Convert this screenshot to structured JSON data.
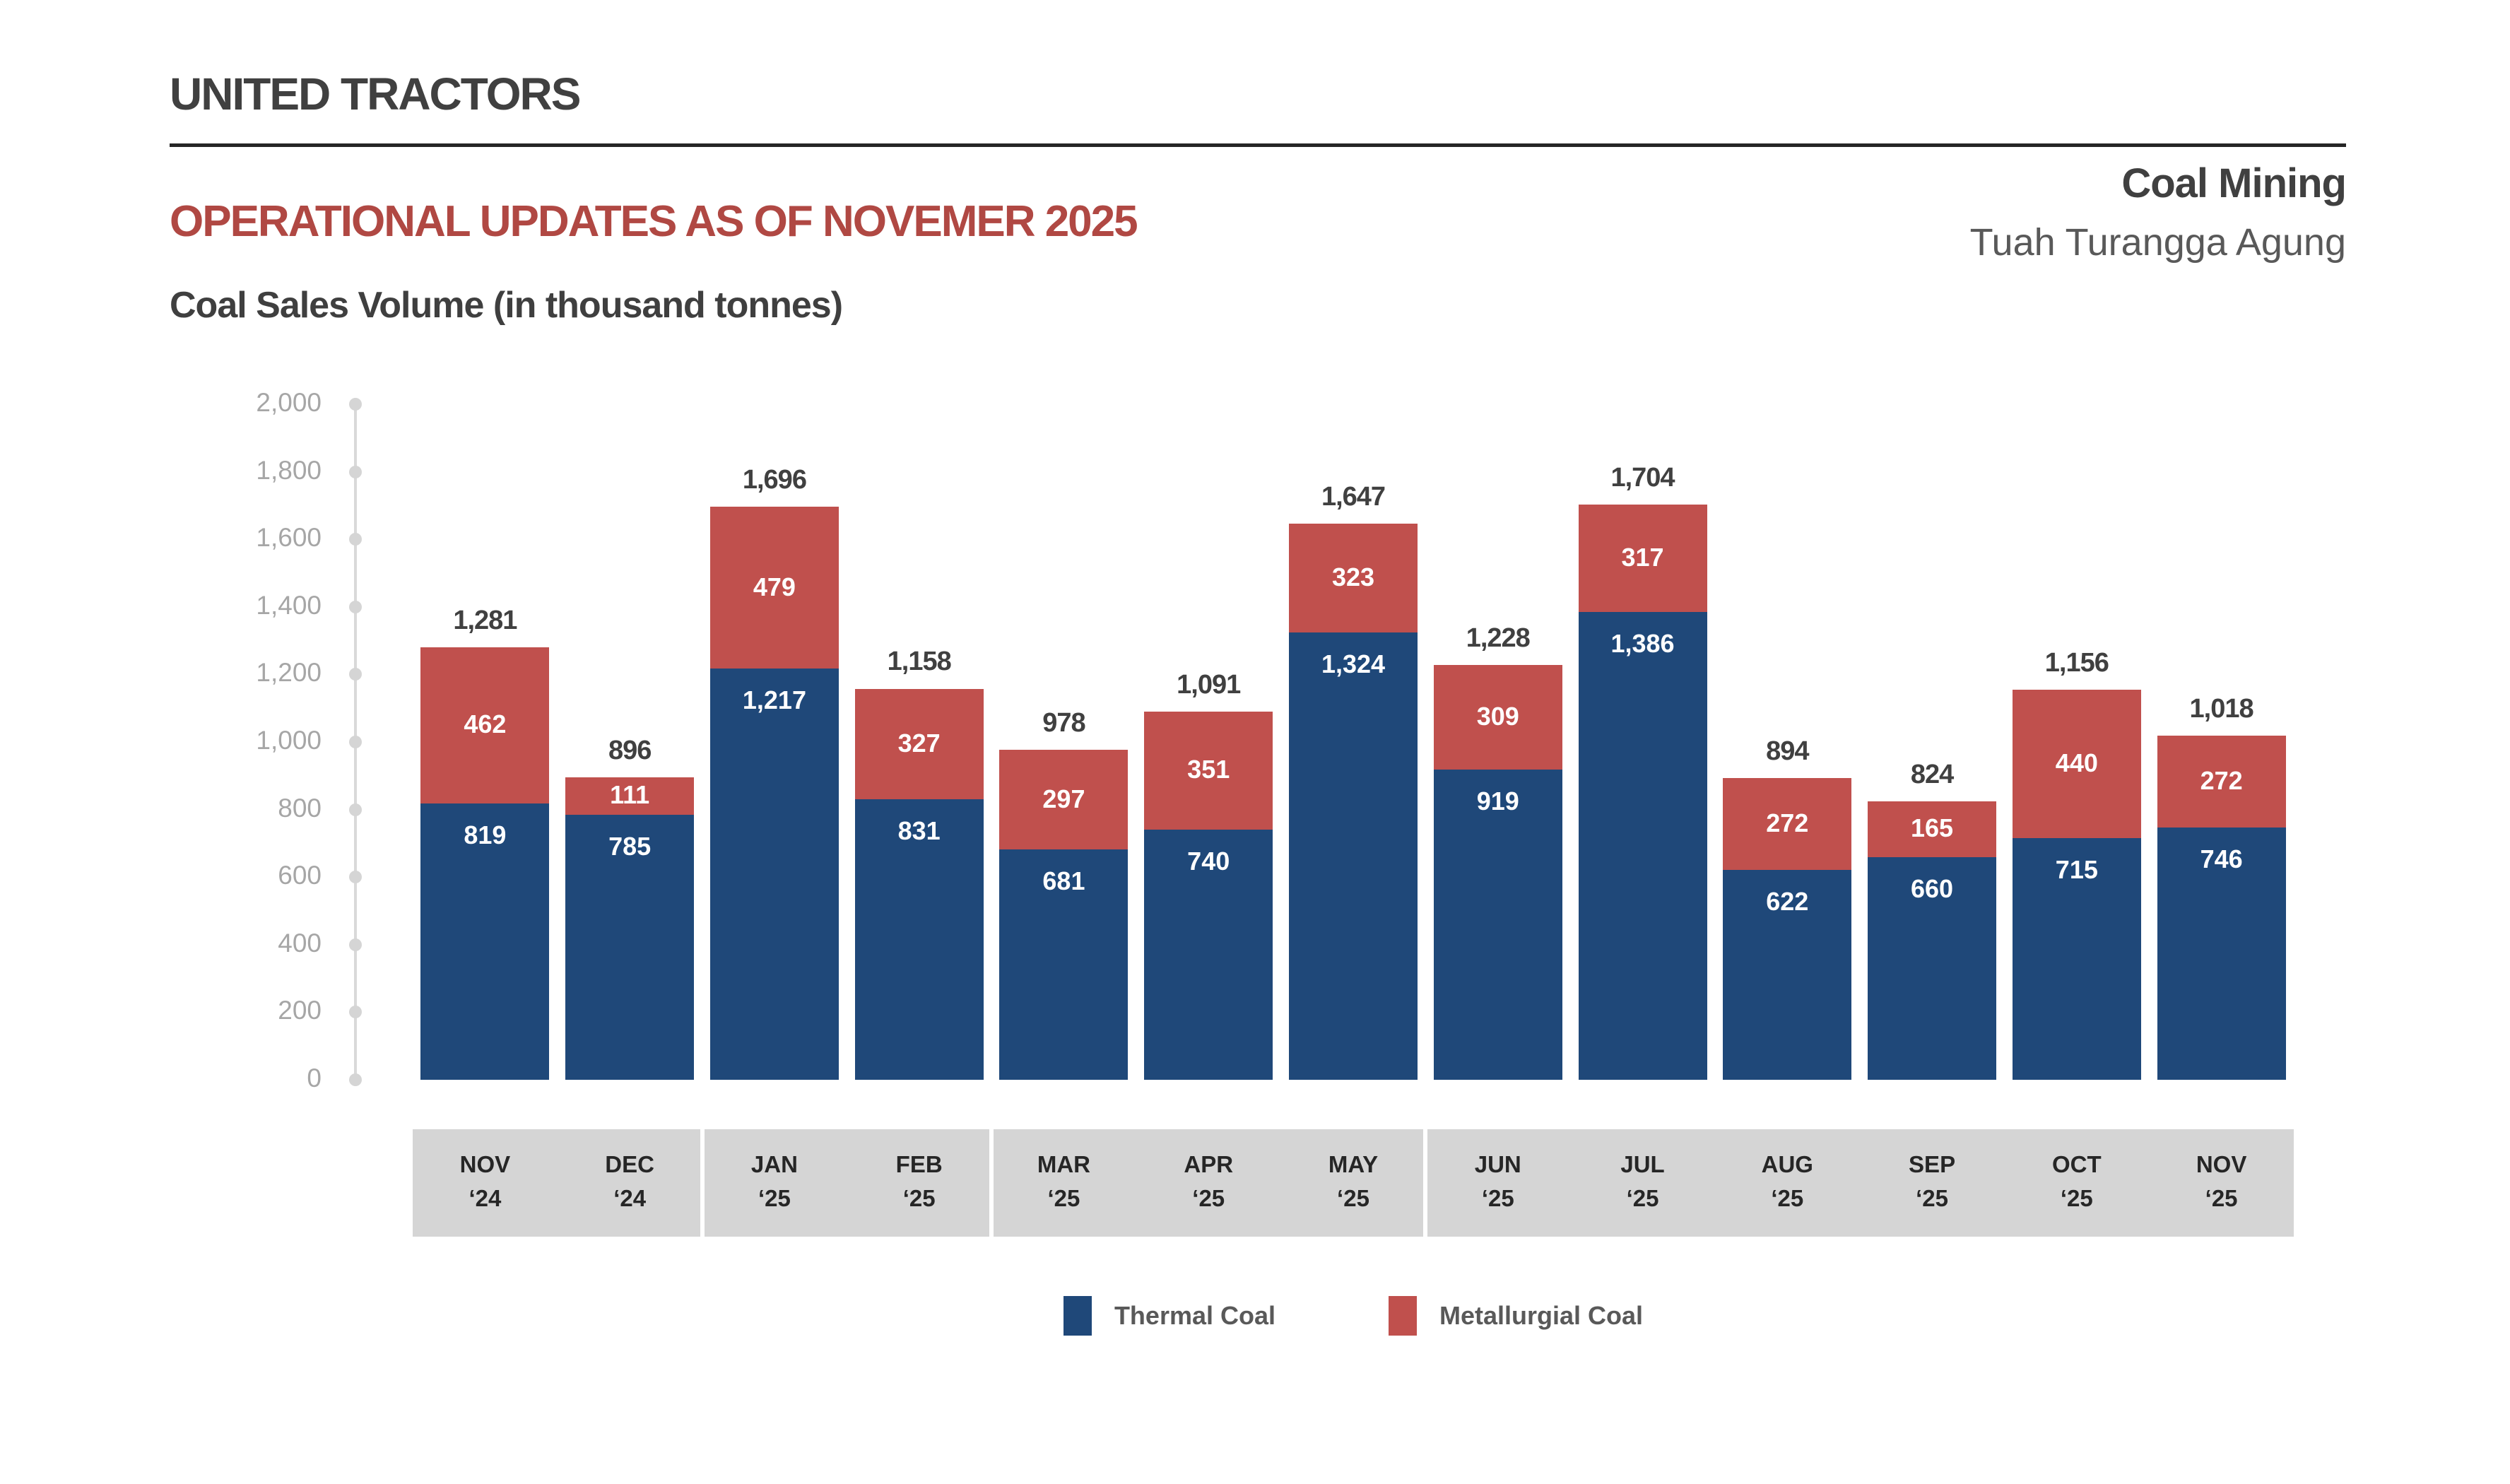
{
  "header": {
    "company": "UNITED TRACTORS",
    "report_title": "OPERATIONAL UPDATES AS OF NOVEMER 2025",
    "chart_subtitle": "Coal Sales Volume (in thousand tonnes)",
    "segment_title": "Coal Mining",
    "segment_subtitle": "Tuah Turangga Agung"
  },
  "colors": {
    "thermal": "#1F4879",
    "metallurgical": "#C0504D",
    "accent_title": "#B04843",
    "axis_line": "#D9D9D9",
    "axis_label": "#A6A6A6",
    "band_bg": "#D5D5D5",
    "total_label": "#404040",
    "month_text": "#262626",
    "legend_text": "#595959"
  },
  "chart_data": {
    "type": "bar",
    "stacked": true,
    "title": "Coal Sales Volume (in thousand tonnes)",
    "unit": "thousand tonnes",
    "ylim": [
      0,
      2000
    ],
    "y_tick_step": 200,
    "y_tick_labels_top_down": [
      "2,000",
      "1,800",
      "1,600",
      "1,400",
      "1,200",
      "1,000",
      "800",
      "600",
      "400",
      "200",
      "0"
    ],
    "grid": "none",
    "legend_position": "bottom",
    "categories": [
      {
        "month": "NOV",
        "year": "‘24"
      },
      {
        "month": "DEC",
        "year": "‘24"
      },
      {
        "month": "JAN",
        "year": "‘25"
      },
      {
        "month": "FEB",
        "year": "‘25"
      },
      {
        "month": "MAR",
        "year": "‘25"
      },
      {
        "month": "APR",
        "year": "‘25"
      },
      {
        "month": "MAY",
        "year": "‘25"
      },
      {
        "month": "JUN",
        "year": "‘25"
      },
      {
        "month": "JUL",
        "year": "‘25"
      },
      {
        "month": "AUG",
        "year": "‘25"
      },
      {
        "month": "SEP",
        "year": "‘25"
      },
      {
        "month": "OCT",
        "year": "‘25"
      },
      {
        "month": "NOV",
        "year": "‘25"
      }
    ],
    "series": [
      {
        "name": "Thermal Coal",
        "color": "#1F4879",
        "values": [
          819,
          785,
          1217,
          831,
          681,
          740,
          1324,
          919,
          1386,
          622,
          660,
          715,
          746
        ],
        "labels": [
          "819",
          "785",
          "1,217",
          "831",
          "681",
          "740",
          "1,324",
          "919",
          "1,386",
          "622",
          "660",
          "715",
          "746"
        ]
      },
      {
        "name": "Metallurgial Coal",
        "color": "#C0504D",
        "values": [
          462,
          111,
          479,
          327,
          297,
          351,
          323,
          309,
          317,
          272,
          165,
          440,
          272
        ],
        "labels": [
          "462",
          "111",
          "479",
          "327",
          "297",
          "351",
          "323",
          "309",
          "317",
          "272",
          "165",
          "440",
          "272"
        ]
      }
    ],
    "totals": [
      1281,
      896,
      1696,
      1158,
      978,
      1091,
      1647,
      1228,
      1704,
      894,
      824,
      1156,
      1018
    ],
    "total_labels": [
      "1,281",
      "896",
      "1,696",
      "1,158",
      "978",
      "1,091",
      "1,647",
      "1,228",
      "1,704",
      "894",
      "824",
      "1,156",
      "1,018"
    ],
    "band_group_boundaries_after_columns": [
      2,
      4,
      7
    ]
  }
}
